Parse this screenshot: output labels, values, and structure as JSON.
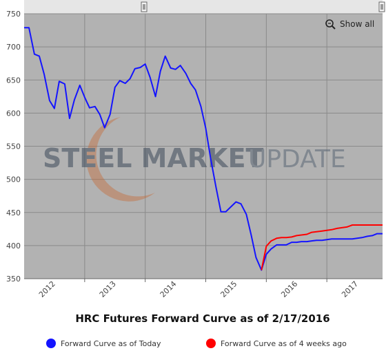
{
  "chart_data": {
    "type": "line",
    "title": "HRC Futures Forward Curve as of 2/17/2016",
    "watermark": [
      "STEEL MARKET",
      "UPDATE"
    ],
    "button": "Show all",
    "xlim": [
      2011.5,
      2017.42
    ],
    "ylim": [
      350,
      750
    ],
    "yticks": [
      350,
      400,
      450,
      500,
      550,
      600,
      650,
      700,
      750
    ],
    "xticks": [
      {
        "value": 2012.5,
        "label": "2012"
      },
      {
        "value": 2013.5,
        "label": "2013"
      },
      {
        "value": 2014.5,
        "label": "2014"
      },
      {
        "value": 2015.5,
        "label": "2015"
      },
      {
        "value": 2016.5,
        "label": "2016"
      },
      {
        "value": 2017.5,
        "label": "2017"
      }
    ],
    "grid": true,
    "legend": "bottom",
    "series": [
      {
        "name": "Forward Curve as of Today",
        "color": "#1414ff",
        "x": [
          2011.5,
          2011.58,
          2011.67,
          2011.75,
          2011.83,
          2011.92,
          2012.0,
          2012.08,
          2012.17,
          2012.25,
          2012.33,
          2012.42,
          2012.5,
          2012.58,
          2012.67,
          2012.75,
          2012.83,
          2012.92,
          2013.0,
          2013.08,
          2013.17,
          2013.25,
          2013.33,
          2013.42,
          2013.5,
          2013.58,
          2013.67,
          2013.75,
          2013.83,
          2013.92,
          2014.0,
          2014.08,
          2014.17,
          2014.25,
          2014.33,
          2014.42,
          2014.5,
          2014.58,
          2014.67,
          2014.75,
          2014.83,
          2014.92,
          2015.0,
          2015.08,
          2015.17,
          2015.25,
          2015.33,
          2015.42,
          2015.5,
          2015.58,
          2015.67,
          2015.75,
          2015.83,
          2015.92,
          2016.0,
          2016.08,
          2016.17,
          2016.25,
          2016.33,
          2016.42,
          2016.5,
          2016.58,
          2016.67,
          2016.75,
          2016.83,
          2016.92,
          2017.0,
          2017.08,
          2017.17,
          2017.25,
          2017.33,
          2017.42
        ],
        "values": [
          729,
          729,
          689,
          686,
          659,
          619,
          607,
          648,
          644,
          592,
          620,
          642,
          624,
          608,
          610,
          598,
          578,
          598,
          639,
          649,
          645,
          652,
          667,
          669,
          674,
          654,
          625,
          663,
          686,
          668,
          666,
          672,
          660,
          645,
          635,
          610,
          577,
          532,
          488,
          451,
          451,
          459,
          466,
          463,
          447,
          416,
          382,
          363,
          387,
          395,
          401,
          401,
          401,
          405,
          405,
          406,
          406,
          407,
          408,
          408,
          409,
          410,
          410,
          410,
          410,
          410,
          411,
          412,
          414,
          415,
          418,
          418
        ]
      },
      {
        "name": "Forward Curve as of 4 weeks ago",
        "color": "#ff0000",
        "x": [
          2015.42,
          2015.5,
          2015.58,
          2015.67,
          2015.75,
          2015.83,
          2015.92,
          2016.0,
          2016.08,
          2016.17,
          2016.25,
          2016.33,
          2016.42,
          2016.5,
          2016.58,
          2016.67,
          2016.75,
          2016.83,
          2016.92,
          2017.0,
          2017.08,
          2017.17,
          2017.25,
          2017.33,
          2017.42
        ],
        "values": [
          363,
          399,
          407,
          411,
          412,
          412,
          413,
          415,
          416,
          417,
          420,
          421,
          422,
          423,
          424,
          426,
          427,
          428,
          431,
          431,
          431,
          431,
          431,
          431,
          431
        ]
      }
    ]
  }
}
